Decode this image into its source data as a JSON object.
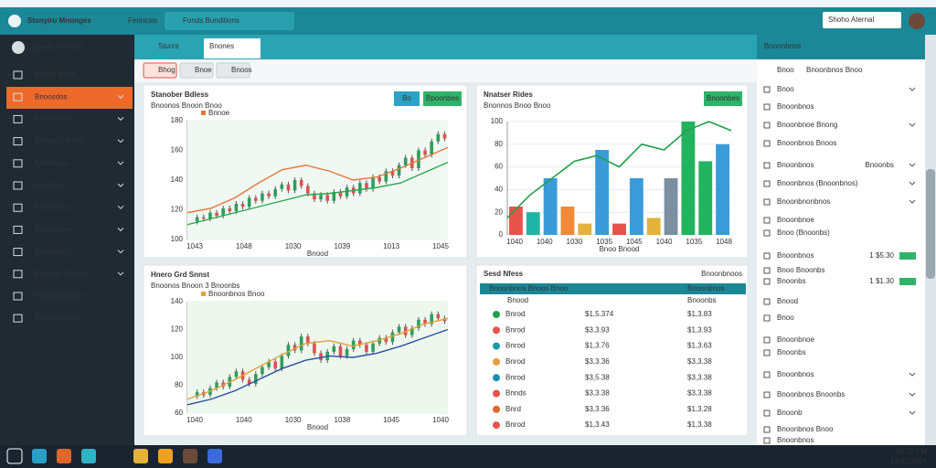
{
  "titlebar": {
    "app": "Stonyiru Mnonges",
    "tab1": "Feoncsis",
    "tab2": "Fonds Bunditions",
    "search": "Shoho Aternal"
  },
  "sidebar": {
    "brand": "Bpodo Mhonelt",
    "items": [
      "Bnoon Mosk",
      "Bnoosdos",
      "Bnoo Bactry",
      "Bnoonds Beng",
      "Bnoorlods",
      "Bnoorbys",
      "Bnoorbnos",
      "Bnoonbnoe",
      "Bnoonbary",
      "Bnooste Bnomg",
      "Riqad Bnomge",
      "Bnoo Bnoods"
    ]
  },
  "toolbar": {
    "tabs": [
      "Sturcs",
      "Bnones"
    ],
    "buttons": [
      "Bhog",
      "Bnoe",
      "Bnoos"
    ]
  },
  "charts": [
    {
      "type": "candlestick",
      "title": "Stanober Bdless",
      "subtitle": "Bnoonos Bnoon Bnoo",
      "legend": "Bnnoe",
      "buttons": [
        "Bo",
        "Bpoonbes"
      ],
      "ylim": [
        100,
        180
      ],
      "yticks": [
        100,
        120,
        140,
        160,
        180
      ],
      "xlabels": [
        "1043",
        "1048",
        "1030",
        "1039",
        "1013",
        "1045"
      ],
      "xlabel": "Bnood",
      "values": [
        112,
        115,
        114,
        118,
        116,
        121,
        119,
        124,
        122,
        128,
        126,
        131,
        129,
        134,
        137,
        133,
        140,
        136,
        131,
        127,
        130,
        126,
        132,
        129,
        135,
        131,
        138,
        134,
        142,
        139,
        146,
        143,
        150,
        155,
        148,
        160,
        157,
        166,
        171,
        168
      ],
      "lines": [
        {
          "color": "#e07a3c",
          "values": [
            118,
            121,
            128,
            138,
            147,
            150,
            146,
            140,
            142,
            148,
            155,
            162
          ]
        },
        {
          "color": "#2ca84f",
          "values": [
            110,
            114,
            118,
            122,
            126,
            130,
            131,
            133,
            135,
            138,
            145,
            152
          ]
        }
      ]
    },
    {
      "type": "bar",
      "title": "Nnatser Rides",
      "subtitle": "Bnonnos Bnoo Bnoo",
      "buttons": [
        "Bnoonbes"
      ],
      "ylim": [
        0,
        100
      ],
      "yticks": [
        0,
        20,
        40,
        60,
        80,
        100
      ],
      "xlabels": [
        "1040",
        "1040",
        "1030",
        "1035",
        "1045",
        "1040",
        "1035",
        "1048"
      ],
      "xlabel": "Bnoo Bnood",
      "values": [
        25,
        20,
        50,
        25,
        10,
        75,
        10,
        50,
        15,
        50,
        100,
        65,
        80
      ],
      "colors": [
        "#e8524a",
        "#1fb5a5",
        "#3a9bd9",
        "#f08a3a",
        "#e3b23c",
        "#3a9bd9",
        "#e8524a",
        "#3a9bd9",
        "#e3b23c",
        "#7d8fa3",
        "#22b35e",
        "#22b35e",
        "#3a9bd9"
      ],
      "line": {
        "color": "#22a04a",
        "values": [
          15,
          35,
          50,
          65,
          70,
          60,
          80,
          75,
          92,
          100,
          92
        ]
      }
    },
    {
      "type": "candlestick",
      "title": "Hnero Grd Snnst",
      "subtitle": "Bnoonos Bnoon 3 Bnoonbs",
      "legend": "Bnoonbnos Bnoo",
      "buttons": [],
      "ylim": [
        60,
        140
      ],
      "yticks": [
        60,
        80,
        100,
        120,
        140
      ],
      "xlabels": [
        "1040",
        "1040",
        "1030",
        "1038",
        "1045",
        "1040"
      ],
      "xlabel": "Bnood",
      "values": [
        72,
        75,
        73,
        78,
        82,
        79,
        86,
        90,
        84,
        81,
        88,
        93,
        97,
        92,
        101,
        109,
        105,
        115,
        110,
        103,
        98,
        104,
        108,
        101,
        106,
        112,
        109,
        104,
        110,
        114,
        111,
        118,
        122,
        116,
        121,
        127,
        124,
        131,
        128,
        126
      ],
      "lines": [
        {
          "color": "#e3a03c",
          "values": [
            70,
            76,
            84,
            93,
            102,
            110,
            112,
            108,
            112,
            117,
            124,
            128
          ]
        },
        {
          "color": "#2a4fa0",
          "values": [
            66,
            70,
            76,
            84,
            92,
            98,
            101,
            100,
            103,
            108,
            114,
            120
          ]
        }
      ]
    }
  ],
  "table": {
    "title": "Sesd Nfess",
    "link": "Bnoonbnoos",
    "headers": [
      "Bnoonbnos Bnoos Bnoo",
      "Bnoonbnos"
    ],
    "sub": [
      "Bnood",
      "Bnoonbs"
    ],
    "rows": [
      [
        "Bnrod",
        "$1,5.374",
        "$1,3.83"
      ],
      [
        "Bnrod",
        "$3,3.93",
        "$1,3.93"
      ],
      [
        "Bnrod",
        "$1,3.76",
        "$1,3.63"
      ],
      [
        "Bnrod",
        "$3,3.36",
        "$3,3.38"
      ],
      [
        "Bnrod",
        "$3,5.38",
        "$3,3.38"
      ],
      [
        "Bnnds",
        "$3,3.38",
        "$3,3.38"
      ],
      [
        "Bnrd",
        "$3,3.36",
        "$1,3.28"
      ],
      [
        "Bnrod",
        "$1,3.43",
        "$1,3.38"
      ]
    ]
  },
  "right_panel": {
    "title": "Bnoonbnos",
    "tabs": [
      "Bnoo",
      "Bnoonbnos Bnoo"
    ],
    "rows": [
      {
        "label": "Bnoo"
      },
      {
        "label": "Bnoonbnos",
        "color": "#e0672c"
      },
      {
        "label": "Bnoonbnoe Bnong"
      },
      {
        "label": "Bnoonbnos Bnoos"
      },
      {
        "label": "Bnoonbnos",
        "value": "Bnoonbs"
      },
      {
        "label": "Bnoonbnos (Bnoonbnos)",
        "color": "#e0672c"
      },
      {
        "label": "Bnoonbnonbnos",
        "color": "#1a9aa8"
      },
      {
        "label": "Bnoonbnoe"
      },
      {
        "label": "Bnoo (Bnoonbs)",
        "color": "#22a04a"
      },
      {
        "label": "Bnoonbnos",
        "value": "1 $5.30"
      },
      {
        "label": "Bnoo Bnoonbs"
      },
      {
        "label": "Bnoonbs",
        "value": "1 $1.30"
      },
      {
        "label": "Bnood"
      },
      {
        "label": "Bnoo"
      },
      {
        "label": "Bnoonbnoe"
      },
      {
        "label": "Bnoonbs"
      },
      {
        "label": "Bnoonbnos"
      },
      {
        "label": "Bnoonbnos Bnoonbs",
        "color": "#8a3aa8"
      },
      {
        "label": "Bnoonb"
      },
      {
        "label": "Bnoonbnos Bnoo"
      },
      {
        "label": "Bnoonbnos"
      }
    ]
  },
  "taskbar": {
    "time": "10:30 PM",
    "date": "12/12/2024"
  }
}
